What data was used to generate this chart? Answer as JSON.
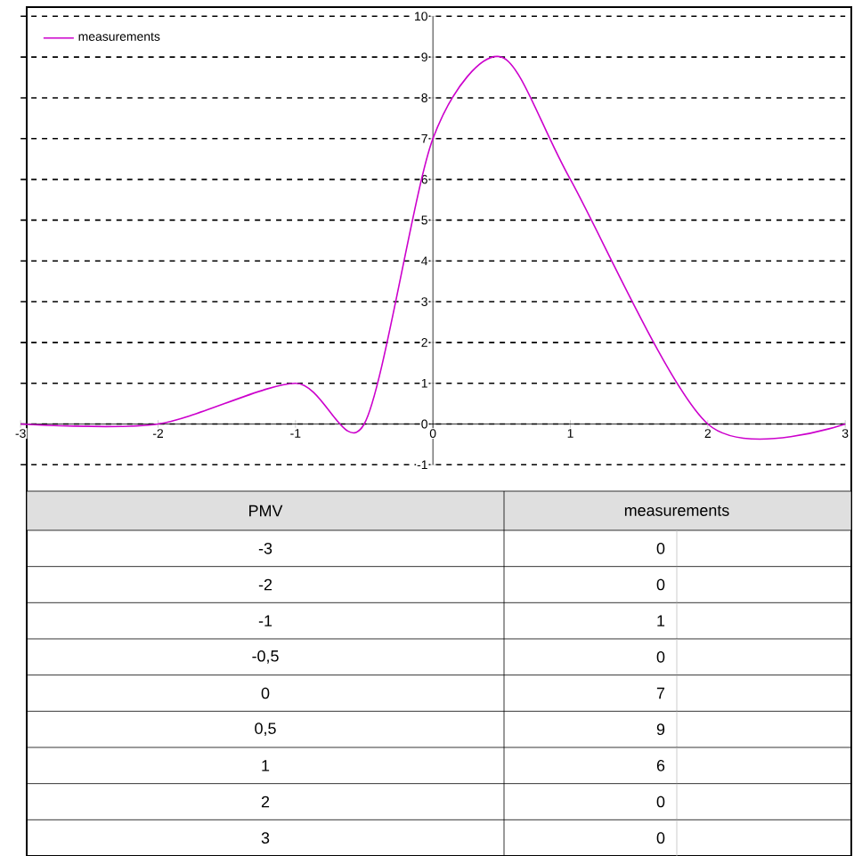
{
  "chart_data": {
    "type": "line",
    "xlabel": "PMV",
    "x": [
      -3,
      -2,
      -1,
      -0.5,
      0,
      0.5,
      1,
      2,
      3
    ],
    "series": [
      {
        "name": "measurements",
        "color": "#cc00cc",
        "values": [
          0,
          0,
          1,
          0,
          7,
          9,
          6,
          0,
          0
        ]
      }
    ],
    "annotations": [
      "-3",
      "-2",
      "-1",
      "-0,5",
      "0",
      "0,5",
      "1",
      "2",
      "3",
      "0",
      "0",
      "1",
      "0",
      "7",
      "9",
      "6",
      "0",
      "0"
    ],
    "xlim": [
      -3,
      3
    ],
    "ylim": [
      -1,
      10
    ],
    "xticks": [
      -3,
      -2,
      -1,
      0,
      1,
      2,
      3
    ],
    "yticks": [
      -1,
      0,
      1,
      2,
      3,
      4,
      5,
      6,
      7,
      8,
      9,
      10
    ],
    "grid": "y",
    "legend": "top left",
    "marker": "none",
    "line_style": "solid"
  }
}
